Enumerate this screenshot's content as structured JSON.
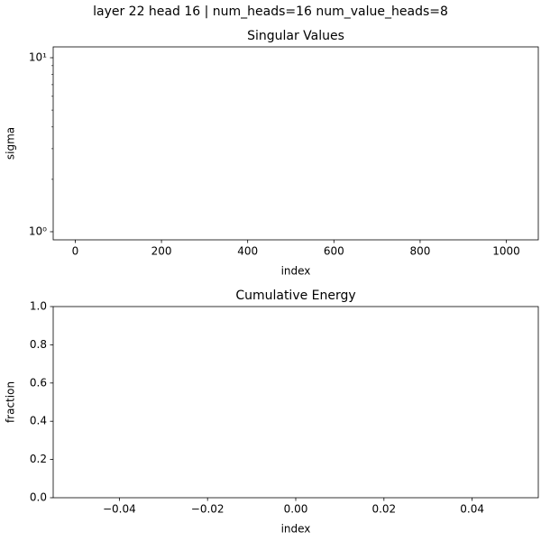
{
  "title": "layer 22 head 16 | num_heads=16 num_value_heads=8",
  "chart_data": [
    {
      "type": "line",
      "title": "Singular Values",
      "xlabel": "index",
      "ylabel": "sigma",
      "xlim": [
        -51.15,
        1074.15
      ],
      "xticks": [
        0,
        200,
        400,
        600,
        800,
        1000
      ],
      "ylog": true,
      "ylim": [
        0.898,
        11.54
      ],
      "yticks": [
        {
          "value": 1,
          "label": "10⁰"
        },
        {
          "value": 10,
          "label": "10¹"
        }
      ],
      "yminorticks": [
        2,
        3,
        4,
        5,
        6,
        7,
        8,
        9
      ]
    },
    {
      "type": "line",
      "title": "Cumulative Energy",
      "xlabel": "index",
      "ylabel": "fraction",
      "xlim": [
        -0.055,
        0.055
      ],
      "xticks": [
        {
          "value": -0.04,
          "label": "−0.04"
        },
        {
          "value": -0.02,
          "label": "−0.02"
        },
        {
          "value": 0,
          "label": "0.00"
        },
        {
          "value": 0.02,
          "label": "0.02"
        },
        {
          "value": 0.04,
          "label": "0.04"
        }
      ],
      "ylim": [
        0,
        1
      ],
      "yticks": [
        {
          "value": 0,
          "label": "0.0"
        },
        0.2,
        0.4,
        0.6,
        0.8,
        {
          "value": 1,
          "label": "1.0"
        }
      ]
    }
  ]
}
